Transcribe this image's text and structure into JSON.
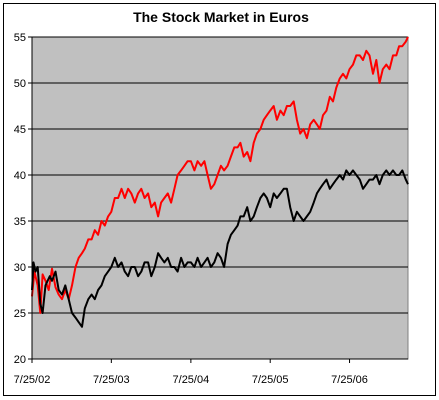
{
  "chart_data": {
    "type": "line",
    "title": "The Stock Market in Euros",
    "xlabel": "",
    "ylabel": "",
    "ylim": [
      20,
      55
    ],
    "xlim": [
      "2002-07-25",
      "2007-04-20"
    ],
    "y_ticks": [
      20,
      25,
      30,
      35,
      40,
      45,
      50,
      55
    ],
    "x_ticks": [
      "7/25/02",
      "7/25/03",
      "7/25/04",
      "7/25/05",
      "7/25/06"
    ],
    "plot_background": "#c0c0c0",
    "grid": "horizontal",
    "legend": "none",
    "series": [
      {
        "color": "#ff0000",
        "x": [
          "2002-07-25",
          "2002-08-05",
          "2002-08-20",
          "2002-09-01",
          "2002-09-12",
          "2002-09-25",
          "2002-10-10",
          "2002-10-25",
          "2002-11-10",
          "2002-11-25",
          "2002-12-10",
          "2002-12-25",
          "2003-01-10",
          "2003-01-25",
          "2003-02-10",
          "2003-02-25",
          "2003-03-12",
          "2003-03-25",
          "2003-04-10",
          "2003-04-25",
          "2003-05-10",
          "2003-05-25",
          "2003-06-10",
          "2003-06-25",
          "2003-07-10",
          "2003-07-25",
          "2003-08-10",
          "2003-08-25",
          "2003-09-10",
          "2003-09-25",
          "2003-10-10",
          "2003-10-25",
          "2003-11-10",
          "2003-11-25",
          "2003-12-10",
          "2003-12-25",
          "2004-01-10",
          "2004-01-25",
          "2004-02-10",
          "2004-02-25",
          "2004-03-10",
          "2004-03-25",
          "2004-04-10",
          "2004-04-25",
          "2004-05-10",
          "2004-05-25",
          "2004-06-10",
          "2004-06-25",
          "2004-07-10",
          "2004-07-25",
          "2004-08-10",
          "2004-08-25",
          "2004-09-10",
          "2004-09-25",
          "2004-10-10",
          "2004-10-25",
          "2004-11-10",
          "2004-11-25",
          "2004-12-10",
          "2004-12-25",
          "2005-01-10",
          "2005-01-25",
          "2005-02-10",
          "2005-02-25",
          "2005-03-10",
          "2005-03-25",
          "2005-04-10",
          "2005-04-25",
          "2005-05-10",
          "2005-05-25",
          "2005-06-10",
          "2005-06-25",
          "2005-07-10",
          "2005-07-25",
          "2005-08-10",
          "2005-08-25",
          "2005-09-10",
          "2005-09-25",
          "2005-10-10",
          "2005-10-25",
          "2005-11-10",
          "2005-11-25",
          "2005-12-10",
          "2005-12-25",
          "2006-01-10",
          "2006-01-25",
          "2006-02-10",
          "2006-02-25",
          "2006-03-10",
          "2006-03-25",
          "2006-04-10",
          "2006-04-25",
          "2006-05-10",
          "2006-05-25",
          "2006-06-10",
          "2006-06-25",
          "2006-07-10",
          "2006-07-25",
          "2006-08-10",
          "2006-08-25",
          "2006-09-10",
          "2006-09-25",
          "2006-10-10",
          "2006-10-25",
          "2006-11-10",
          "2006-11-25",
          "2006-12-10",
          "2006-12-25",
          "2007-01-10",
          "2007-01-25",
          "2007-02-10",
          "2007-02-25",
          "2007-03-10",
          "2007-03-25",
          "2007-04-10",
          "2007-04-20"
        ],
        "values": [
          26.8,
          29.5,
          28.0,
          25.0,
          29.2,
          28.5,
          27.5,
          29.8,
          27.8,
          27.0,
          26.5,
          27.5,
          26.5,
          28.0,
          30.0,
          31.0,
          31.5,
          32.0,
          33.0,
          33.0,
          34.0,
          33.5,
          35.0,
          34.5,
          35.5,
          36.0,
          37.5,
          37.5,
          38.5,
          37.5,
          38.5,
          38.0,
          37.0,
          38.0,
          38.5,
          37.5,
          38.0,
          36.5,
          37.0,
          35.5,
          37.0,
          37.5,
          38.0,
          37.0,
          38.5,
          40.0,
          40.5,
          41.0,
          41.5,
          41.5,
          40.5,
          41.5,
          41.0,
          41.5,
          40.0,
          38.5,
          39.0,
          40.0,
          41.0,
          40.5,
          41.0,
          42.0,
          43.0,
          43.0,
          43.5,
          42.0,
          42.5,
          41.5,
          43.5,
          44.5,
          45.0,
          46.0,
          46.5,
          47.0,
          47.5,
          46.0,
          47.0,
          46.5,
          47.5,
          47.5,
          48.0,
          46.0,
          44.5,
          45.0,
          44.0,
          45.5,
          46.0,
          45.5,
          45.0,
          46.5,
          47.0,
          48.5,
          48.0,
          49.5,
          50.5,
          51.0,
          50.5,
          51.5,
          52.0,
          53.0,
          53.0,
          52.5,
          53.5,
          53.0,
          51.0,
          52.5,
          50.0,
          51.5,
          52.0,
          51.5,
          53.0,
          53.0,
          54.0,
          54.0,
          54.5,
          55.0
        ]
      },
      {
        "color": "#000000",
        "x": [
          "2002-07-25",
          "2002-08-01",
          "2002-08-10",
          "2002-08-20",
          "2002-09-01",
          "2002-09-12",
          "2002-09-25",
          "2002-10-05",
          "2002-10-15",
          "2002-10-25",
          "2002-11-10",
          "2002-11-25",
          "2002-12-10",
          "2002-12-25",
          "2003-01-10",
          "2003-01-25",
          "2003-02-10",
          "2003-02-25",
          "2003-03-12",
          "2003-03-25",
          "2003-04-10",
          "2003-04-25",
          "2003-05-10",
          "2003-05-25",
          "2003-06-10",
          "2003-06-25",
          "2003-07-10",
          "2003-07-25",
          "2003-08-10",
          "2003-08-25",
          "2003-09-10",
          "2003-09-25",
          "2003-10-10",
          "2003-10-25",
          "2003-11-10",
          "2003-11-25",
          "2003-12-10",
          "2003-12-25",
          "2004-01-10",
          "2004-01-25",
          "2004-02-10",
          "2004-02-25",
          "2004-03-10",
          "2004-03-25",
          "2004-04-10",
          "2004-04-25",
          "2004-05-10",
          "2004-05-25",
          "2004-06-10",
          "2004-06-25",
          "2004-07-10",
          "2004-07-25",
          "2004-08-10",
          "2004-08-25",
          "2004-09-10",
          "2004-09-25",
          "2004-10-10",
          "2004-10-25",
          "2004-11-10",
          "2004-11-25",
          "2004-12-10",
          "2004-12-25",
          "2005-01-10",
          "2005-01-25",
          "2005-02-10",
          "2005-02-25",
          "2005-03-10",
          "2005-03-25",
          "2005-04-10",
          "2005-04-25",
          "2005-05-10",
          "2005-05-25",
          "2005-06-10",
          "2005-06-25",
          "2005-07-10",
          "2005-07-25",
          "2005-08-10",
          "2005-08-25",
          "2005-09-10",
          "2005-09-25",
          "2005-10-10",
          "2005-10-25",
          "2005-11-10",
          "2005-11-25",
          "2005-12-10",
          "2005-12-25",
          "2006-01-10",
          "2006-01-25",
          "2006-02-10",
          "2006-02-25",
          "2006-03-10",
          "2006-03-25",
          "2006-04-10",
          "2006-04-25",
          "2006-05-10",
          "2006-05-25",
          "2006-06-10",
          "2006-06-25",
          "2006-07-10",
          "2006-07-25",
          "2006-08-10",
          "2006-08-25",
          "2006-09-10",
          "2006-09-25",
          "2006-10-10",
          "2006-10-25",
          "2006-11-10",
          "2006-11-25",
          "2006-12-10",
          "2006-12-25",
          "2007-01-10",
          "2007-01-25",
          "2007-02-10",
          "2007-02-25",
          "2007-03-10",
          "2007-03-25",
          "2007-04-10",
          "2007-04-20"
        ],
        "values": [
          27.5,
          30.5,
          29.5,
          30.0,
          26.0,
          25.0,
          28.0,
          28.5,
          29.0,
          28.5,
          29.5,
          27.5,
          27.0,
          28.0,
          26.5,
          25.0,
          24.5,
          24.0,
          23.5,
          25.5,
          26.5,
          27.0,
          26.5,
          27.5,
          28.0,
          29.0,
          29.5,
          30.0,
          31.0,
          30.0,
          30.5,
          29.5,
          29.0,
          30.0,
          30.0,
          29.0,
          29.5,
          30.5,
          30.5,
          29.0,
          30.0,
          31.5,
          31.0,
          30.5,
          31.0,
          30.0,
          30.0,
          29.5,
          31.0,
          30.0,
          30.5,
          30.5,
          30.0,
          31.0,
          30.0,
          30.5,
          31.0,
          30.0,
          30.5,
          31.5,
          31.0,
          30.0,
          32.5,
          33.5,
          34.0,
          34.5,
          35.5,
          35.5,
          36.5,
          35.0,
          35.5,
          36.5,
          37.5,
          38.0,
          37.5,
          36.5,
          38.0,
          37.5,
          38.0,
          38.5,
          38.5,
          36.5,
          35.0,
          36.0,
          35.5,
          35.0,
          35.5,
          36.0,
          37.0,
          38.0,
          38.5,
          39.0,
          39.5,
          38.5,
          39.0,
          39.5,
          40.0,
          39.5,
          40.5,
          40.0,
          40.5,
          40.0,
          39.5,
          38.5,
          39.0,
          39.5,
          39.5,
          40.0,
          39.0,
          40.0,
          40.5,
          40.0,
          40.5,
          40.0,
          40.0,
          40.5,
          39.5,
          39.0
        ]
      }
    ]
  }
}
